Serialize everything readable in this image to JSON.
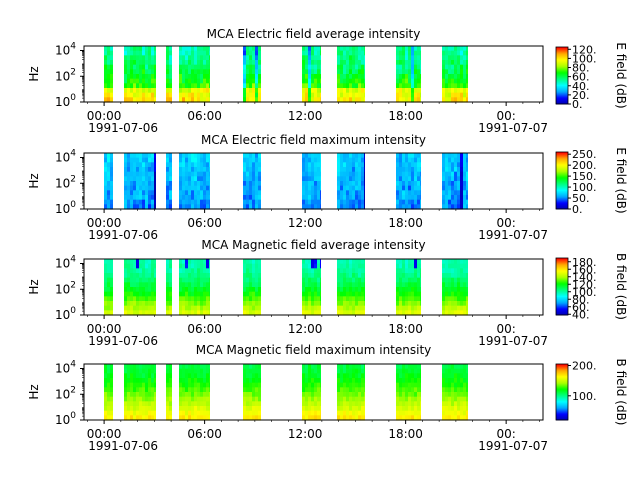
{
  "chart_data": [
    {
      "type": "heatmap",
      "title": "MCA  Electric field average intensity",
      "ylabel": "Hz",
      "colorbar_label": "E field (dB)",
      "colorbar_ticks": [
        "0.",
        "20.",
        "40.",
        "60.",
        "80.",
        "100.",
        "120."
      ],
      "colorbar_range": [
        0,
        125
      ],
      "y_tick_labels": [
        "10^0",
        "10^2",
        "10^4"
      ],
      "x_tick_labels": [
        "00:00",
        "06:00",
        "12:00",
        "18:00",
        "00:"
      ],
      "x_date_labels": [
        "1991-07-06",
        "1991-07-07"
      ],
      "style": "e_avg"
    },
    {
      "type": "heatmap",
      "title": "MCA  Electric field maximum intensity",
      "ylabel": "Hz",
      "colorbar_label": "E field (dB)",
      "colorbar_ticks": [
        "0.",
        "50.",
        "100.",
        "150.",
        "200.",
        "250."
      ],
      "colorbar_range": [
        0,
        260
      ],
      "y_tick_labels": [
        "10^0",
        "10^2",
        "10^4"
      ],
      "x_tick_labels": [
        "00:00",
        "06:00",
        "12:00",
        "18:00",
        "00:"
      ],
      "x_date_labels": [
        "1991-07-06",
        "1991-07-07"
      ],
      "style": "e_max"
    },
    {
      "type": "heatmap",
      "title": "MCA  Magnetic field average intensity",
      "ylabel": "Hz",
      "colorbar_label": "B field (dB)",
      "colorbar_ticks": [
        "40.",
        "60.",
        "80.",
        "100.",
        "120.",
        "140.",
        "160.",
        "180."
      ],
      "colorbar_range": [
        38,
        190
      ],
      "y_tick_labels": [
        "10^0",
        "10^2",
        "10^4"
      ],
      "x_tick_labels": [
        "00:00",
        "06:00",
        "12:00",
        "18:00",
        "00:"
      ],
      "x_date_labels": [
        "1991-07-06",
        "1991-07-07"
      ],
      "style": "b_avg"
    },
    {
      "type": "heatmap",
      "title": "MCA  Magnetic field maximum intensity",
      "ylabel": "Hz",
      "colorbar_label": "B field (dB)",
      "colorbar_ticks": [
        "100.",
        "200."
      ],
      "colorbar_range": [
        20,
        205
      ],
      "y_tick_labels": [
        "10^0",
        "10^2",
        "10^4"
      ],
      "x_tick_labels": [
        "00:00",
        "06:00",
        "12:00",
        "18:00",
        "00:"
      ],
      "x_date_labels": [
        "1991-07-06",
        "1991-07-07"
      ],
      "style": "b_max"
    }
  ],
  "data_intervals_hours": [
    [
      0.0,
      0.55
    ],
    [
      1.2,
      3.1
    ],
    [
      3.7,
      4.05
    ],
    [
      4.5,
      6.3
    ],
    [
      8.3,
      9.35
    ],
    [
      11.8,
      12.95
    ],
    [
      13.9,
      15.6
    ],
    [
      17.4,
      18.9
    ],
    [
      20.2,
      21.7
    ]
  ],
  "colors": {
    "colormap": [
      "#0000aa",
      "#0000ff",
      "#00aaff",
      "#00ffff",
      "#00ff80",
      "#00ff00",
      "#aaff00",
      "#ffff00",
      "#ffaa00",
      "#ff0000"
    ]
  }
}
